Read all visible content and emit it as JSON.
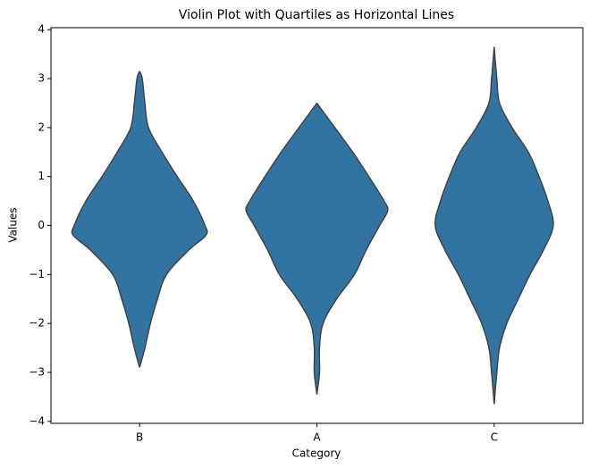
{
  "chart_data": {
    "type": "violin",
    "title": "Violin Plot with Quartiles as Horizontal Lines",
    "xlabel": "Category",
    "ylabel": "Values",
    "categories": [
      "B",
      "A",
      "C"
    ],
    "color": "#3274a1",
    "violins": [
      {
        "y": [
          3.15,
          3.0,
          2.5,
          2.0,
          1.5,
          1.0,
          0.5,
          0,
          -0.2,
          -0.5,
          -1.0,
          -1.5,
          -2.0,
          -2.5,
          -2.9
        ],
        "width": [
          0,
          0.015,
          0.03,
          0.05,
          0.126,
          0.212,
          0.303,
          0.369,
          0.374,
          0.278,
          0.152,
          0.101,
          0.061,
          0.03,
          0
        ]
      },
      {
        "y": [
          2.5,
          2.0,
          1.5,
          1.0,
          0.5,
          0.3,
          0,
          -0.5,
          -1.0,
          -1.5,
          -2.0,
          -2.5,
          -3.0,
          -3.45
        ],
        "width": [
          0,
          0.101,
          0.202,
          0.293,
          0.379,
          0.399,
          0.354,
          0.278,
          0.212,
          0.111,
          0.035,
          0.015,
          0.015,
          0
        ]
      },
      {
        "y": [
          3.65,
          3.0,
          2.5,
          2.0,
          1.5,
          1.0,
          0.5,
          0,
          -0.5,
          -1.0,
          -1.5,
          -2.0,
          -2.5,
          -3.0,
          -3.65
        ],
        "width": [
          0,
          0.015,
          0.03,
          0.101,
          0.192,
          0.253,
          0.303,
          0.333,
          0.278,
          0.202,
          0.136,
          0.071,
          0.03,
          0.015,
          0
        ]
      }
    ],
    "ylim": [
      -4.04,
      4.04
    ],
    "yticks": [
      {
        "value": -4,
        "label": "−4"
      },
      {
        "value": -3,
        "label": "−3"
      },
      {
        "value": -2,
        "label": "−2"
      },
      {
        "value": -1,
        "label": "−1"
      },
      0,
      1,
      2,
      3,
      4
    ]
  }
}
